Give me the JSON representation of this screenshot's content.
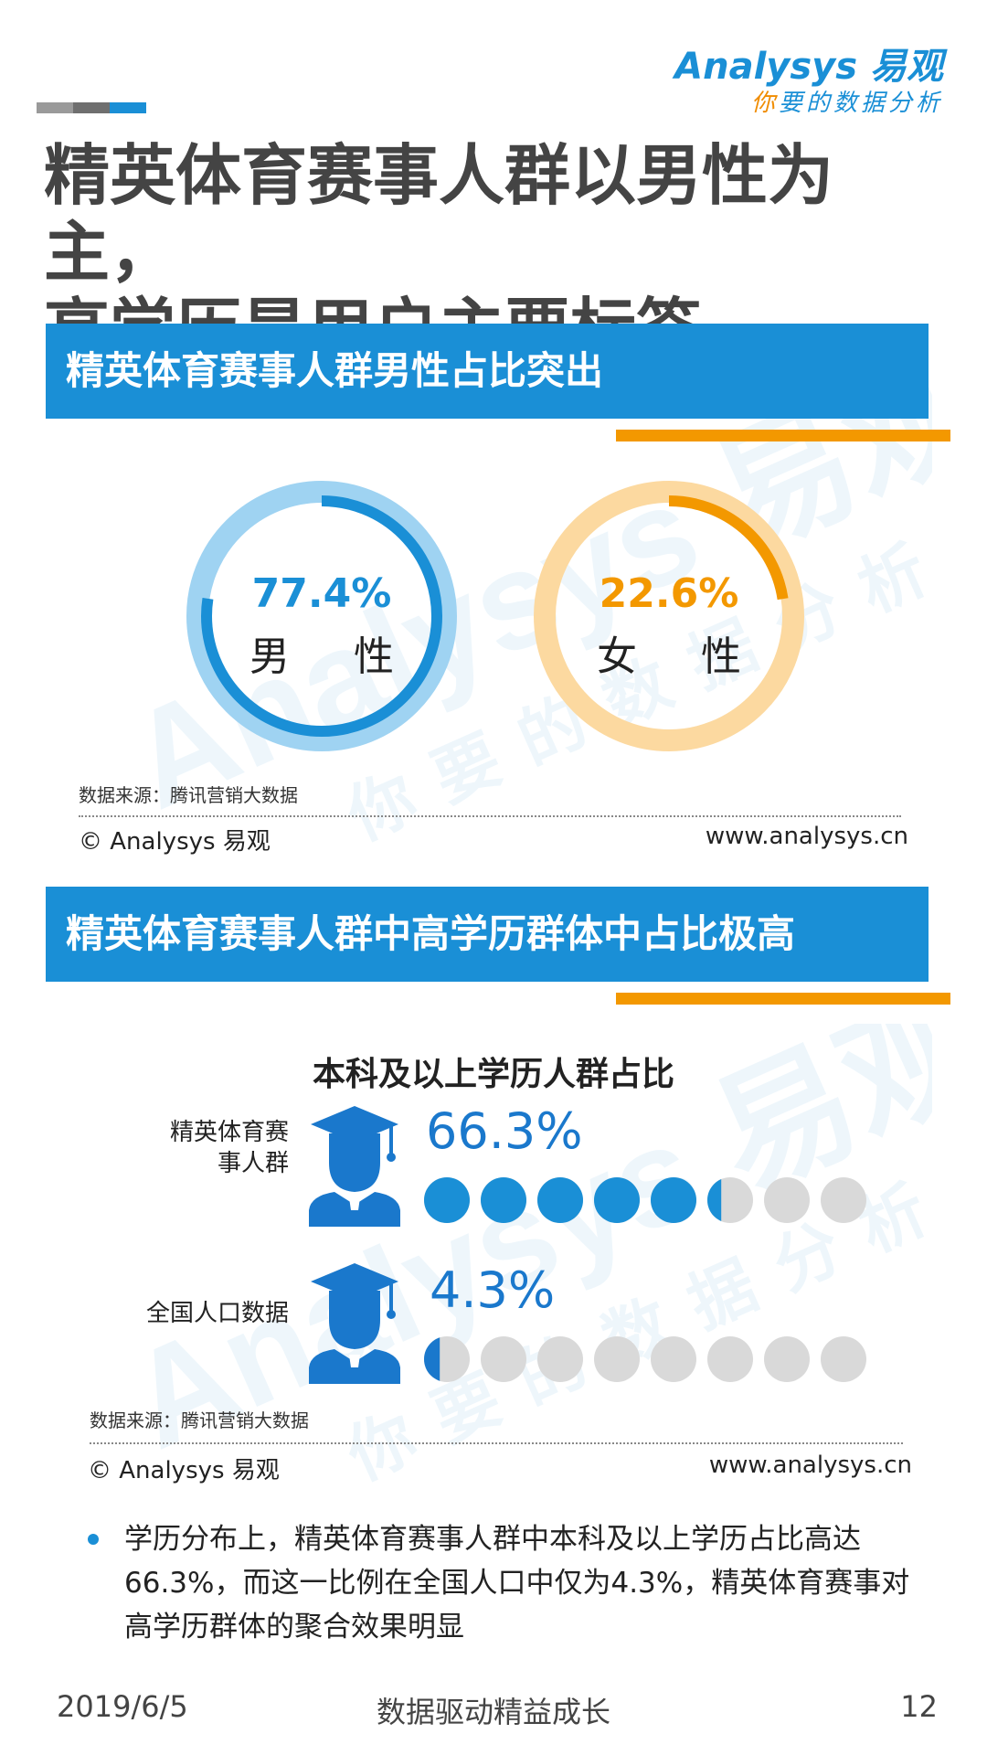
{
  "logo": {
    "brand": "Analysys",
    "brand_cn": "易观",
    "slogan_accent": "你",
    "slogan_rest": "要的数据分析"
  },
  "colors": {
    "blue": "#1a8fd6",
    "light_blue": "#9fd3f2",
    "orange": "#f39800",
    "light_orange": "#fcd9a0",
    "gray_dot": "#d9d9d9",
    "dark_blue": "#1a78cc"
  },
  "title": {
    "line1": "精英体育赛事人群以男性为主，",
    "line2": "高学历是用户主要标签"
  },
  "section1": {
    "heading": "精英体育赛事人群男性占比突出",
    "source": "数据来源：腾讯营销大数据",
    "copyright": "© Analysys 易观",
    "site": "www.analysys.cn"
  },
  "section2": {
    "heading": "精英体育赛事人群中高学历群体中占比极高",
    "source": "数据来源：腾讯营销大数据",
    "copyright": "© Analysys 易观",
    "site": "www.analysys.cn"
  },
  "watermark": {
    "brand": "Analysys 易观",
    "slogan": "你要的数据分析"
  },
  "chart_data": [
    {
      "type": "pie",
      "categories": [
        "男 性",
        "女 性"
      ],
      "values": [
        77.4,
        22.6
      ],
      "value_labels": [
        "77.4%",
        "22.6%"
      ]
    },
    {
      "type": "bar",
      "title": "本科及以上学历人群占比",
      "categories": [
        "精英体育赛事人群",
        "全国人口数据"
      ],
      "values": [
        66.3,
        4.3
      ],
      "value_labels": [
        "66.3%",
        "4.3%"
      ],
      "dots_per_row": 8
    }
  ],
  "edu_rows": [
    {
      "label_line1": "精英体育赛",
      "label_line2": "事人群"
    },
    {
      "label_line1": "全国人口数据",
      "label_line2": ""
    }
  ],
  "body": {
    "text": "学历分布上，精英体育赛事人群中本科及以上学历占比高达66.3%，而这一比例在全国人口中仅为4.3%，精英体育赛事对高学历群体的聚合效果明显"
  },
  "footer": {
    "date": "2019/6/5",
    "center": "数据驱动精益成长",
    "page": "12"
  }
}
